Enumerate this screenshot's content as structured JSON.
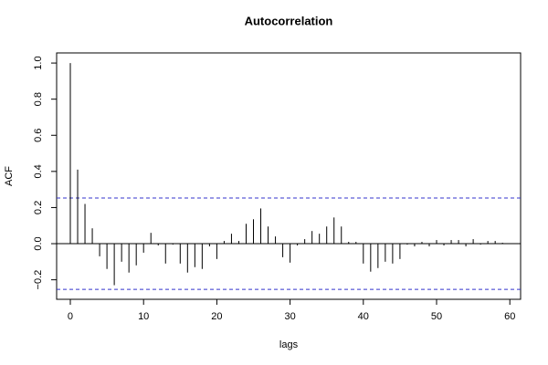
{
  "chart_data": {
    "type": "bar",
    "title": "Autocorrelation",
    "x_label": "lags",
    "y_label": "ACF",
    "x": [
      0,
      1,
      2,
      3,
      4,
      5,
      6,
      7,
      8,
      9,
      10,
      11,
      12,
      13,
      14,
      15,
      16,
      17,
      18,
      19,
      20,
      21,
      22,
      23,
      24,
      25,
      26,
      27,
      28,
      29,
      30,
      31,
      32,
      33,
      34,
      35,
      36,
      37,
      38,
      39,
      40,
      41,
      42,
      43,
      44,
      45,
      46,
      47,
      48,
      49,
      50,
      51,
      52,
      53,
      54,
      55,
      56,
      57,
      58,
      59
    ],
    "values": [
      1.0,
      0.41,
      0.22,
      0.085,
      -0.07,
      -0.14,
      -0.23,
      -0.1,
      -0.16,
      -0.12,
      -0.05,
      0.06,
      -0.01,
      -0.11,
      -0.005,
      -0.11,
      -0.16,
      -0.13,
      -0.14,
      -0.015,
      -0.085,
      0.015,
      0.055,
      0.015,
      0.11,
      0.135,
      0.195,
      0.095,
      0.04,
      -0.075,
      -0.105,
      -0.01,
      0.025,
      0.07,
      0.055,
      0.095,
      0.145,
      0.095,
      0.01,
      0.01,
      -0.11,
      -0.155,
      -0.135,
      -0.1,
      -0.11,
      -0.085,
      -0.005,
      -0.015,
      0.01,
      -0.015,
      0.02,
      -0.01,
      0.02,
      0.02,
      -0.015,
      0.025,
      -0.005,
      0.015,
      0.015,
      0.005
    ],
    "color": "#000000",
    "conf_limits": [
      0.253,
      -0.253
    ],
    "conf_color": "#3333cc",
    "xlim": [
      -1.87,
      61.47
    ],
    "xticks": [
      0,
      10,
      20,
      30,
      40,
      50,
      60
    ],
    "ylim": [
      -0.308,
      1.056
    ],
    "yticks": [
      {
        "value": -0.2,
        "label": "−0.2"
      },
      {
        "value": 0,
        "label": "0.0"
      },
      0.2,
      0.4,
      0.6,
      0.8,
      {
        "value": 1,
        "label": "1.0"
      }
    ]
  }
}
